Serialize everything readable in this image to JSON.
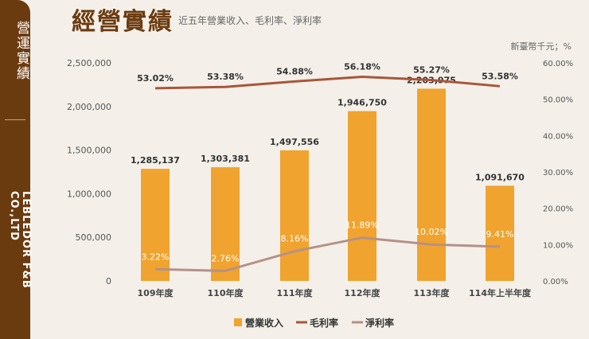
{
  "sidebar": {
    "title": "營運實績",
    "company": "LEBLEDOR F&B CO.,LTD"
  },
  "header": {
    "title": "經營實績",
    "subtitle": "近五年營業收入、毛利率、淨利率",
    "unit": "新臺幣千元；%"
  },
  "chart_data": {
    "type": "bar",
    "categories": [
      "109年度",
      "110年度",
      "111年度",
      "112年度",
      "113年度",
      "114年上半年度"
    ],
    "series": [
      {
        "name": "營業收入",
        "type": "bar",
        "axis": "left",
        "values": [
          1285137,
          1303381,
          1497556,
          1946750,
          2203975,
          1091670
        ],
        "labels": [
          "1,285,137",
          "1,303,381",
          "1,497,556",
          "1,946,750",
          "2,203,975",
          "1,091,670"
        ],
        "color": "#f0a32e"
      },
      {
        "name": "毛利率",
        "type": "line",
        "axis": "right",
        "values": [
          53.02,
          53.38,
          54.88,
          56.18,
          55.27,
          53.58
        ],
        "labels": [
          "53.02%",
          "53.38%",
          "54.88%",
          "56.18%",
          "55.27%",
          "53.58%"
        ],
        "color": "#a8563c"
      },
      {
        "name": "淨利率",
        "type": "line",
        "axis": "right",
        "values": [
          3.22,
          2.76,
          8.16,
          11.89,
          10.02,
          9.41
        ],
        "labels": [
          "3.22%",
          "2.76%",
          "8.16%",
          "11.89%",
          "10.02%",
          "9.41%"
        ],
        "color": "#b4918a"
      }
    ],
    "left_axis": {
      "ylim": [
        0,
        2500000
      ],
      "ticks": [
        "0",
        "500,000",
        "1,000,000",
        "1,500,000",
        "2,000,000",
        "2,500,000"
      ]
    },
    "right_axis": {
      "ylim": [
        0,
        60
      ],
      "ticks": [
        "0.00%",
        "10.00%",
        "20.00%",
        "30.00%",
        "40.00%",
        "50.00%",
        "60.00%"
      ]
    },
    "grid": false,
    "legend": "bottom"
  }
}
